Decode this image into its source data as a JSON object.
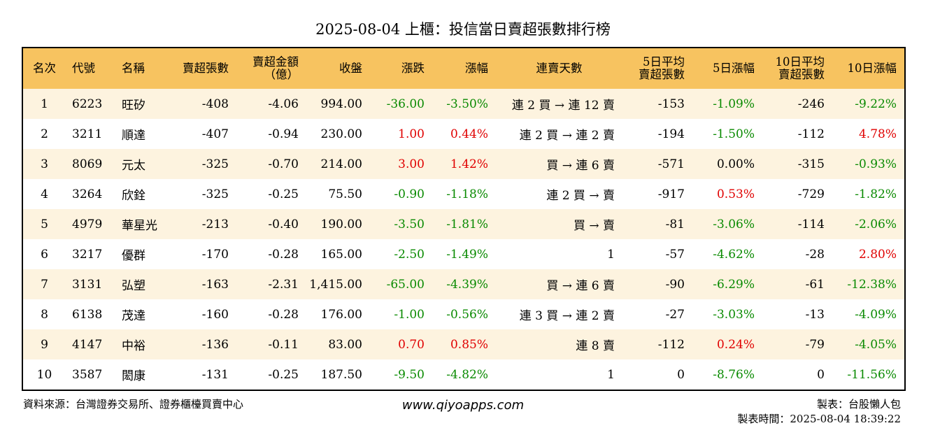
{
  "title": "2025-08-04 上櫃：投信當日賣超張數排行榜",
  "headers": [
    {
      "l1": "名次",
      "l2": ""
    },
    {
      "l1": "代號",
      "l2": ""
    },
    {
      "l1": "名稱",
      "l2": ""
    },
    {
      "l1": "賣超張數",
      "l2": ""
    },
    {
      "l1": "賣超金額",
      "l2": "（億）"
    },
    {
      "l1": "收盤",
      "l2": ""
    },
    {
      "l1": "漲跌",
      "l2": ""
    },
    {
      "l1": "漲幅",
      "l2": ""
    },
    {
      "l1": "連賣天數",
      "l2": ""
    },
    {
      "l1": "5日平均",
      "l2": "賣超張數"
    },
    {
      "l1": "5日漲幅",
      "l2": ""
    },
    {
      "l1": "10日平均",
      "l2": "賣超張數"
    },
    {
      "l1": "10日漲幅",
      "l2": ""
    }
  ],
  "rows": [
    {
      "rank": "1",
      "code": "6223",
      "name": "旺矽",
      "sell": "-408",
      "amount": "-4.06",
      "close": "994.00",
      "change": "-36.00",
      "pct": "-3.50%",
      "streak": "連 2 買 → 連 12 賣",
      "avg5": "-153",
      "chg5": "-1.09%",
      "avg10": "-246",
      "chg10": "-9.22%",
      "change_color": "green",
      "pct_color": "green",
      "chg5_color": "green",
      "chg10_color": "green"
    },
    {
      "rank": "2",
      "code": "3211",
      "name": "順達",
      "sell": "-407",
      "amount": "-0.94",
      "close": "230.00",
      "change": "1.00",
      "pct": "0.44%",
      "streak": "連 2 買 → 連 2 賣",
      "avg5": "-194",
      "chg5": "-1.50%",
      "avg10": "-112",
      "chg10": "4.78%",
      "change_color": "red",
      "pct_color": "red",
      "chg5_color": "green",
      "chg10_color": "red"
    },
    {
      "rank": "3",
      "code": "8069",
      "name": "元太",
      "sell": "-325",
      "amount": "-0.70",
      "close": "214.00",
      "change": "3.00",
      "pct": "1.42%",
      "streak": "買 → 連 6 賣",
      "avg5": "-571",
      "chg5": "0.00%",
      "avg10": "-315",
      "chg10": "-0.93%",
      "change_color": "red",
      "pct_color": "red",
      "chg5_color": "black",
      "chg10_color": "green"
    },
    {
      "rank": "4",
      "code": "3264",
      "name": "欣銓",
      "sell": "-325",
      "amount": "-0.25",
      "close": "75.50",
      "change": "-0.90",
      "pct": "-1.18%",
      "streak": "連 2 買 → 賣",
      "avg5": "-917",
      "chg5": "0.53%",
      "avg10": "-729",
      "chg10": "-1.82%",
      "change_color": "green",
      "pct_color": "green",
      "chg5_color": "red",
      "chg10_color": "green"
    },
    {
      "rank": "5",
      "code": "4979",
      "name": "華星光",
      "sell": "-213",
      "amount": "-0.40",
      "close": "190.00",
      "change": "-3.50",
      "pct": "-1.81%",
      "streak": "買 → 賣",
      "avg5": "-81",
      "chg5": "-3.06%",
      "avg10": "-114",
      "chg10": "-2.06%",
      "change_color": "green",
      "pct_color": "green",
      "chg5_color": "green",
      "chg10_color": "green"
    },
    {
      "rank": "6",
      "code": "3217",
      "name": "優群",
      "sell": "-170",
      "amount": "-0.28",
      "close": "165.00",
      "change": "-2.50",
      "pct": "-1.49%",
      "streak": "1",
      "avg5": "-57",
      "chg5": "-4.62%",
      "avg10": "-28",
      "chg10": "2.80%",
      "change_color": "green",
      "pct_color": "green",
      "chg5_color": "green",
      "chg10_color": "red"
    },
    {
      "rank": "7",
      "code": "3131",
      "name": "弘塑",
      "sell": "-163",
      "amount": "-2.31",
      "close": "1,415.00",
      "change": "-65.00",
      "pct": "-4.39%",
      "streak": "買 → 連 6 賣",
      "avg5": "-90",
      "chg5": "-6.29%",
      "avg10": "-61",
      "chg10": "-12.38%",
      "change_color": "green",
      "pct_color": "green",
      "chg5_color": "green",
      "chg10_color": "green"
    },
    {
      "rank": "8",
      "code": "6138",
      "name": "茂達",
      "sell": "-160",
      "amount": "-0.28",
      "close": "176.00",
      "change": "-1.00",
      "pct": "-0.56%",
      "streak": "連 3 買 → 連 2 賣",
      "avg5": "-27",
      "chg5": "-3.03%",
      "avg10": "-13",
      "chg10": "-4.09%",
      "change_color": "green",
      "pct_color": "green",
      "chg5_color": "green",
      "chg10_color": "green"
    },
    {
      "rank": "9",
      "code": "4147",
      "name": "中裕",
      "sell": "-136",
      "amount": "-0.11",
      "close": "83.00",
      "change": "0.70",
      "pct": "0.85%",
      "streak": "連 8 賣",
      "avg5": "-112",
      "chg5": "0.24%",
      "avg10": "-79",
      "chg10": "-4.05%",
      "change_color": "red",
      "pct_color": "red",
      "chg5_color": "red",
      "chg10_color": "green"
    },
    {
      "rank": "10",
      "code": "3587",
      "name": "閎康",
      "sell": "-131",
      "amount": "-0.25",
      "close": "187.50",
      "change": "-9.50",
      "pct": "-4.82%",
      "streak": "1",
      "avg5": "0",
      "chg5": "-8.76%",
      "avg10": "0",
      "chg10": "-11.56%",
      "change_color": "green",
      "pct_color": "green",
      "chg5_color": "green",
      "chg10_color": "green"
    }
  ],
  "footer": {
    "source": "資料來源：台灣證券交易所、證券櫃檯買賣中心",
    "site": "www.qiyoapps.com",
    "maker": "製表：台股懶人包",
    "time": "製表時間：2025-08-04 18:39:22"
  },
  "colors": {
    "header_bg": "#f7c360",
    "odd_row_bg": "#fdf3df",
    "up": "#e00000",
    "down": "#098a00"
  }
}
